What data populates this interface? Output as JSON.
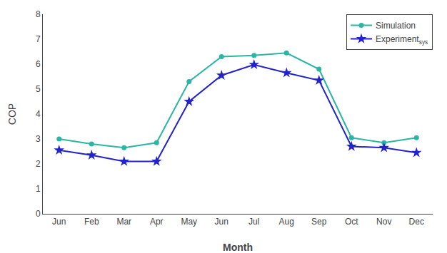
{
  "chart_data": {
    "type": "line",
    "xlabel": "Month",
    "ylabel": "COP",
    "categories": [
      "Jun",
      "Feb",
      "Mar",
      "Apr",
      "May",
      "Jun",
      "Jul",
      "Aug",
      "Sep",
      "Oct",
      "Nov",
      "Dec"
    ],
    "series": [
      {
        "name": "Simulation",
        "color": "#2ab5a5",
        "marker": "circle",
        "line_style": "solid",
        "values": [
          3.0,
          2.8,
          2.65,
          2.85,
          5.3,
          6.3,
          6.35,
          6.45,
          5.8,
          3.05,
          2.85,
          3.05
        ]
      },
      {
        "name": "Experiment",
        "subscript": "sys",
        "color": "#2222cc",
        "marker": "star",
        "line_style": "solid",
        "values": [
          2.55,
          2.35,
          2.1,
          2.1,
          4.5,
          5.55,
          5.98,
          5.65,
          5.35,
          2.7,
          2.65,
          2.45
        ]
      }
    ],
    "ylim": [
      0,
      8
    ],
    "yticks": [
      0,
      1,
      2,
      3,
      4,
      5,
      6,
      7,
      8
    ],
    "grid": false,
    "legend": "upper right"
  }
}
